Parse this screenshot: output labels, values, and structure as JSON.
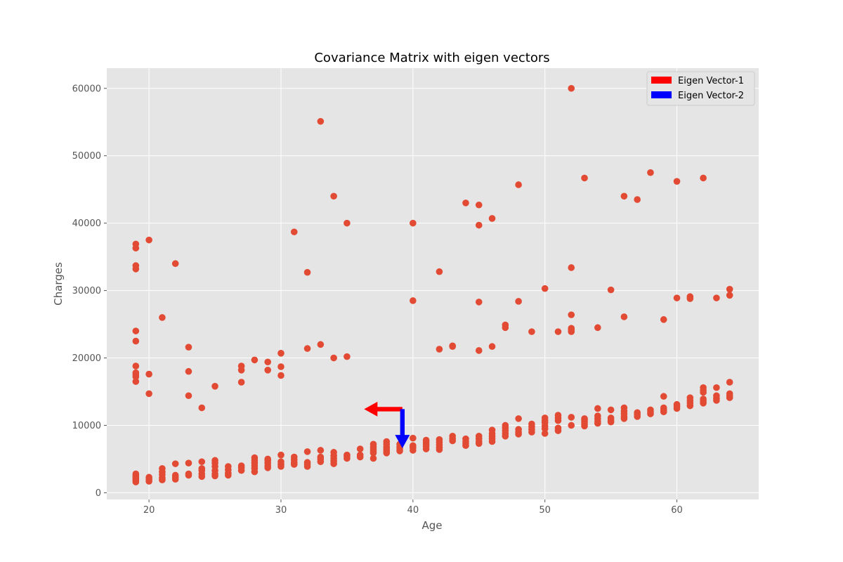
{
  "chart_data": {
    "type": "scatter",
    "title": "Covariance Matrix with eigen vectors",
    "xlabel": "Age",
    "ylabel": "Charges",
    "xlim": [
      16.8,
      66.2
    ],
    "ylim": [
      -1000,
      63000
    ],
    "xticks": [
      20,
      30,
      40,
      50,
      60
    ],
    "yticks": [
      0,
      10000,
      20000,
      30000,
      40000,
      50000,
      60000
    ],
    "grid": true,
    "legend_position": "top-right",
    "colors": {
      "background": "#e5e5e5",
      "points": "#e24a33",
      "eigen_vector_1": "#ff0000",
      "eigen_vector_2": "#0000ff",
      "grid": "#ffffff"
    },
    "legend": [
      {
        "label": "Eigen Vector-1",
        "color": "#ff0000"
      },
      {
        "label": "Eigen Vector-2",
        "color": "#0000ff"
      }
    ],
    "eigen_vectors": [
      {
        "name": "Eigen Vector-1",
        "origin": [
          39.2,
          12400
        ],
        "vector": [
          -2.9,
          0
        ],
        "color": "#ff0000"
      },
      {
        "name": "Eigen Vector-2",
        "origin": [
          39.2,
          12400
        ],
        "vector": [
          0,
          -5800
        ],
        "color": "#0000ff"
      }
    ],
    "series": [
      {
        "points": [
          [
            19,
            1600
          ],
          [
            19,
            1800
          ],
          [
            19,
            2000
          ],
          [
            19,
            2200
          ],
          [
            19,
            2400
          ],
          [
            19,
            2600
          ],
          [
            19,
            2800
          ],
          [
            19,
            16500
          ],
          [
            19,
            17200
          ],
          [
            19,
            17500
          ],
          [
            19,
            17800
          ],
          [
            19,
            18800
          ],
          [
            19,
            22500
          ],
          [
            19,
            24000
          ],
          [
            19,
            33200
          ],
          [
            19,
            33700
          ],
          [
            19,
            36300
          ],
          [
            19,
            36900
          ],
          [
            20,
            1700
          ],
          [
            20,
            2000
          ],
          [
            20,
            2300
          ],
          [
            20,
            14700
          ],
          [
            20,
            17600
          ],
          [
            20,
            37500
          ],
          [
            21,
            1900
          ],
          [
            21,
            2200
          ],
          [
            21,
            2700
          ],
          [
            21,
            3100
          ],
          [
            21,
            3600
          ],
          [
            21,
            26000
          ],
          [
            22,
            2000
          ],
          [
            22,
            2300
          ],
          [
            22,
            2600
          ],
          [
            22,
            4300
          ],
          [
            22,
            34000
          ],
          [
            23,
            2600
          ],
          [
            23,
            2800
          ],
          [
            23,
            4400
          ],
          [
            23,
            14400
          ],
          [
            23,
            18000
          ],
          [
            23,
            21600
          ],
          [
            24,
            2400
          ],
          [
            24,
            2800
          ],
          [
            24,
            3300
          ],
          [
            24,
            3600
          ],
          [
            24,
            4600
          ],
          [
            24,
            12600
          ],
          [
            25,
            2500
          ],
          [
            25,
            2800
          ],
          [
            25,
            3300
          ],
          [
            25,
            3900
          ],
          [
            25,
            4400
          ],
          [
            25,
            4800
          ],
          [
            25,
            15800
          ],
          [
            26,
            2600
          ],
          [
            26,
            2900
          ],
          [
            26,
            3400
          ],
          [
            26,
            3900
          ],
          [
            27,
            3300
          ],
          [
            27,
            3700
          ],
          [
            27,
            4000
          ],
          [
            27,
            16400
          ],
          [
            27,
            18200
          ],
          [
            27,
            18800
          ],
          [
            28,
            3100
          ],
          [
            28,
            3600
          ],
          [
            28,
            4000
          ],
          [
            28,
            4400
          ],
          [
            28,
            4800
          ],
          [
            28,
            5200
          ],
          [
            28,
            19700
          ],
          [
            29,
            3700
          ],
          [
            29,
            4000
          ],
          [
            29,
            4400
          ],
          [
            29,
            4800
          ],
          [
            29,
            5000
          ],
          [
            29,
            18200
          ],
          [
            29,
            19400
          ],
          [
            30,
            3900
          ],
          [
            30,
            4200
          ],
          [
            30,
            4600
          ],
          [
            30,
            5600
          ],
          [
            30,
            17400
          ],
          [
            30,
            18700
          ],
          [
            30,
            20700
          ],
          [
            31,
            4200
          ],
          [
            31,
            4500
          ],
          [
            31,
            4900
          ],
          [
            31,
            5300
          ],
          [
            31,
            38700
          ],
          [
            32,
            3900
          ],
          [
            32,
            4200
          ],
          [
            32,
            4500
          ],
          [
            32,
            6100
          ],
          [
            32,
            21400
          ],
          [
            32,
            32700
          ],
          [
            33,
            4600
          ],
          [
            33,
            5000
          ],
          [
            33,
            5300
          ],
          [
            33,
            6300
          ],
          [
            33,
            22000
          ],
          [
            33,
            55100
          ],
          [
            34,
            4300
          ],
          [
            34,
            4700
          ],
          [
            34,
            5100
          ],
          [
            34,
            5500
          ],
          [
            34,
            6000
          ],
          [
            34,
            20000
          ],
          [
            34,
            44000
          ],
          [
            35,
            5100
          ],
          [
            35,
            5400
          ],
          [
            35,
            5600
          ],
          [
            35,
            20200
          ],
          [
            35,
            40000
          ],
          [
            36,
            5300
          ],
          [
            36,
            5600
          ],
          [
            36,
            6500
          ],
          [
            37,
            5100
          ],
          [
            37,
            5900
          ],
          [
            37,
            6200
          ],
          [
            37,
            6500
          ],
          [
            37,
            6800
          ],
          [
            37,
            7200
          ],
          [
            38,
            5900
          ],
          [
            38,
            6200
          ],
          [
            38,
            6500
          ],
          [
            38,
            6800
          ],
          [
            38,
            7200
          ],
          [
            38,
            7600
          ],
          [
            39,
            6200
          ],
          [
            39,
            6500
          ],
          [
            39,
            6800
          ],
          [
            39,
            7200
          ],
          [
            40,
            6300
          ],
          [
            40,
            6700
          ],
          [
            40,
            7000
          ],
          [
            40,
            8100
          ],
          [
            40,
            28500
          ],
          [
            40,
            40000
          ],
          [
            41,
            6500
          ],
          [
            41,
            6900
          ],
          [
            41,
            7200
          ],
          [
            41,
            7500
          ],
          [
            41,
            7800
          ],
          [
            42,
            6400
          ],
          [
            42,
            6700
          ],
          [
            42,
            7100
          ],
          [
            42,
            7500
          ],
          [
            42,
            7900
          ],
          [
            42,
            21300
          ],
          [
            42,
            32800
          ],
          [
            43,
            7700
          ],
          [
            43,
            8000
          ],
          [
            43,
            8400
          ],
          [
            43,
            21800
          ],
          [
            43,
            21700
          ],
          [
            44,
            7000
          ],
          [
            44,
            7300
          ],
          [
            44,
            7600
          ],
          [
            44,
            8000
          ],
          [
            44,
            43000
          ],
          [
            45,
            7300
          ],
          [
            45,
            7600
          ],
          [
            45,
            8000
          ],
          [
            45,
            8400
          ],
          [
            45,
            21100
          ],
          [
            45,
            28300
          ],
          [
            45,
            39700
          ],
          [
            45,
            42700
          ],
          [
            46,
            7600
          ],
          [
            46,
            8000
          ],
          [
            46,
            8400
          ],
          [
            46,
            8800
          ],
          [
            46,
            9300
          ],
          [
            46,
            21700
          ],
          [
            46,
            40700
          ],
          [
            47,
            8400
          ],
          [
            47,
            8800
          ],
          [
            47,
            9200
          ],
          [
            47,
            9600
          ],
          [
            47,
            10000
          ],
          [
            47,
            24500
          ],
          [
            47,
            24900
          ],
          [
            48,
            8700
          ],
          [
            48,
            9000
          ],
          [
            48,
            9400
          ],
          [
            48,
            11000
          ],
          [
            48,
            28400
          ],
          [
            48,
            45700
          ],
          [
            49,
            9000
          ],
          [
            49,
            9400
          ],
          [
            49,
            9800
          ],
          [
            49,
            10200
          ],
          [
            49,
            23900
          ],
          [
            50,
            8800
          ],
          [
            50,
            9500
          ],
          [
            50,
            9900
          ],
          [
            50,
            10400
          ],
          [
            50,
            10700
          ],
          [
            50,
            11100
          ],
          [
            50,
            30300
          ],
          [
            51,
            9200
          ],
          [
            51,
            9600
          ],
          [
            51,
            10700
          ],
          [
            51,
            11100
          ],
          [
            51,
            11500
          ],
          [
            51,
            23900
          ],
          [
            52,
            10000
          ],
          [
            52,
            11200
          ],
          [
            52,
            23900
          ],
          [
            52,
            24200
          ],
          [
            52,
            24400
          ],
          [
            52,
            26400
          ],
          [
            52,
            33400
          ],
          [
            52,
            60000
          ],
          [
            53,
            9900
          ],
          [
            53,
            10200
          ],
          [
            53,
            10500
          ],
          [
            53,
            10800
          ],
          [
            53,
            11000
          ],
          [
            53,
            46700
          ],
          [
            54,
            10300
          ],
          [
            54,
            10600
          ],
          [
            54,
            11000
          ],
          [
            54,
            11400
          ],
          [
            54,
            12500
          ],
          [
            54,
            24500
          ],
          [
            55,
            10500
          ],
          [
            55,
            10800
          ],
          [
            55,
            11100
          ],
          [
            55,
            12300
          ],
          [
            55,
            30100
          ],
          [
            56,
            11000
          ],
          [
            56,
            11300
          ],
          [
            56,
            11700
          ],
          [
            56,
            12100
          ],
          [
            56,
            12600
          ],
          [
            56,
            26100
          ],
          [
            56,
            44000
          ],
          [
            57,
            11300
          ],
          [
            57,
            11600
          ],
          [
            57,
            11900
          ],
          [
            57,
            43500
          ],
          [
            58,
            11700
          ],
          [
            58,
            12000
          ],
          [
            58,
            12300
          ],
          [
            58,
            47500
          ],
          [
            59,
            12000
          ],
          [
            59,
            12300
          ],
          [
            59,
            12600
          ],
          [
            59,
            14300
          ],
          [
            59,
            25700
          ],
          [
            60,
            12500
          ],
          [
            60,
            12800
          ],
          [
            60,
            13100
          ],
          [
            60,
            28900
          ],
          [
            60,
            46200
          ],
          [
            61,
            12900
          ],
          [
            61,
            13300
          ],
          [
            61,
            13700
          ],
          [
            61,
            14100
          ],
          [
            61,
            28800
          ],
          [
            61,
            29100
          ],
          [
            62,
            13300
          ],
          [
            62,
            13600
          ],
          [
            62,
            13900
          ],
          [
            62,
            14900
          ],
          [
            62,
            15200
          ],
          [
            62,
            15600
          ],
          [
            62,
            46700
          ],
          [
            63,
            13700
          ],
          [
            63,
            14000
          ],
          [
            63,
            14400
          ],
          [
            63,
            15600
          ],
          [
            63,
            28900
          ],
          [
            64,
            14100
          ],
          [
            64,
            14400
          ],
          [
            64,
            14700
          ],
          [
            64,
            16400
          ],
          [
            64,
            29300
          ],
          [
            64,
            30200
          ]
        ]
      }
    ]
  }
}
